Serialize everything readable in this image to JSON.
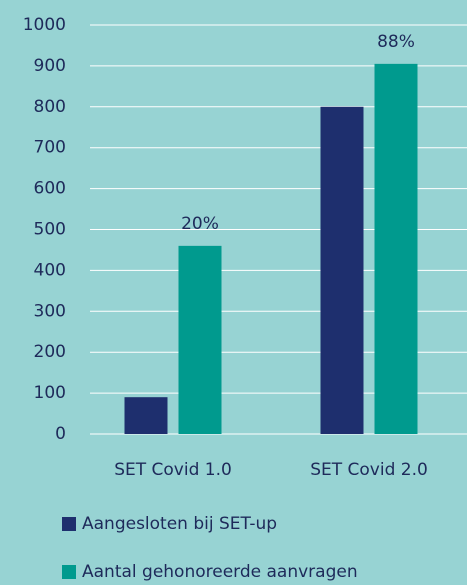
{
  "chart_data": {
    "type": "bar",
    "categories": [
      "SET Covid 1.0",
      "SET Covid 2.0"
    ],
    "series": [
      {
        "name": "Aangesloten bij SET-up",
        "color": "#1e2f6e",
        "values": [
          90,
          800
        ]
      },
      {
        "name": "Aantal gehonoreerde aanvragen",
        "color": "#009a8e",
        "values": [
          460,
          905
        ]
      }
    ],
    "annotations": [
      "20%",
      "88%"
    ],
    "ylim": [
      0,
      1000
    ],
    "yticks": [
      0,
      100,
      200,
      300,
      400,
      500,
      600,
      700,
      800,
      900,
      1000
    ],
    "grid": true,
    "legend": "bottom"
  }
}
